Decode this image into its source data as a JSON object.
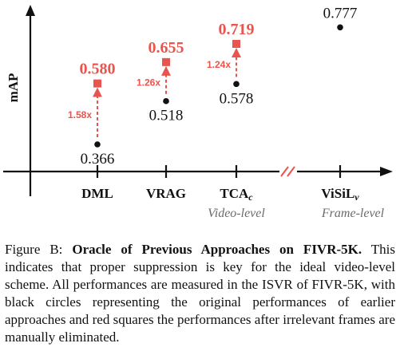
{
  "chart_data": {
    "type": "scatter",
    "ylabel": "mAP",
    "categories": [
      "DML",
      "VRAG",
      "TCA",
      "ViSiL"
    ],
    "category_subscripts": [
      "",
      "",
      "c",
      "v"
    ],
    "groups": [
      {
        "label": "Video-level",
        "categories": [
          "DML",
          "VRAG",
          "TCA"
        ]
      },
      {
        "label": "Frame-level",
        "categories": [
          "ViSiL"
        ]
      }
    ],
    "axis_break_between": [
      "TCA",
      "ViSiL"
    ],
    "ylim": [
      0.25,
      0.82
    ],
    "series": [
      {
        "marker": "circle",
        "color": "#111111",
        "values": [
          0.366,
          0.518,
          0.578,
          0.777
        ]
      },
      {
        "marker": "square",
        "color": "#e8554e",
        "values": [
          0.58,
          0.655,
          0.719,
          null
        ]
      }
    ],
    "value_labels": {
      "original": [
        "0.366",
        "0.518",
        "0.578",
        "0.777"
      ],
      "oracle": [
        "0.580",
        "0.655",
        "0.719",
        null
      ]
    },
    "gains": [
      "1.58x",
      "1.26x",
      "1.24x",
      null
    ],
    "grid": false
  },
  "caption": {
    "prefix": "Figure B: ",
    "title": "Oracle of Previous Approaches on FIVR-5K.",
    "body": " This indicates that proper suppression is key for the ideal video-level scheme. All performances are measured in the ISVR of FIVR-5K, with black circles representing the original performances of earlier approaches and red squares the performances after irrelevant frames are manually eliminated."
  }
}
